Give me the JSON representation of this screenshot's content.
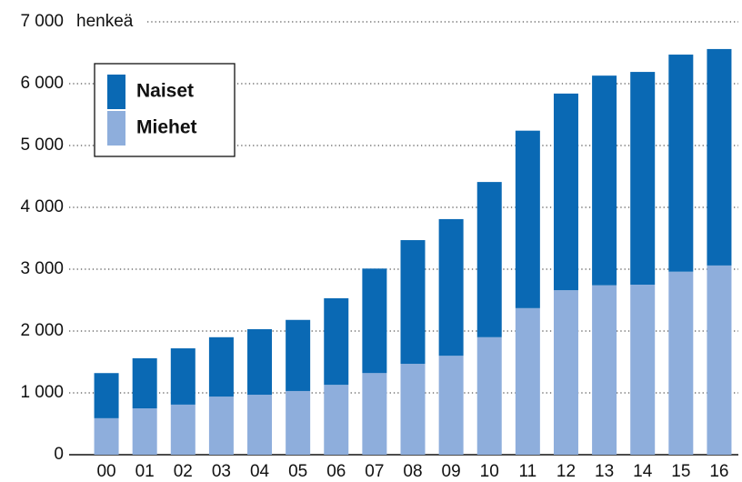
{
  "chart_data": {
    "type": "stacked_bar",
    "y_label": "henkeä",
    "categories": [
      "00",
      "01",
      "02",
      "03",
      "04",
      "05",
      "06",
      "07",
      "08",
      "09",
      "10",
      "11",
      "12",
      "13",
      "14",
      "15",
      "16"
    ],
    "series": [
      {
        "name": "Miehet",
        "color": "#8eaedc",
        "values": [
          590,
          750,
          810,
          940,
          970,
          1030,
          1130,
          1320,
          1470,
          1600,
          1900,
          2370,
          2660,
          2740,
          2750,
          2960,
          3060
        ]
      },
      {
        "name": "Naiset",
        "color": "#0a69b4",
        "values": [
          730,
          810,
          910,
          960,
          1060,
          1150,
          1400,
          1690,
          2000,
          2210,
          2510,
          2870,
          3180,
          3390,
          3440,
          3510,
          3500
        ]
      }
    ],
    "ylim": [
      0,
      7000
    ],
    "yticks": [
      0,
      {
        "value": 1000,
        "label": "1 000"
      },
      {
        "value": 2000,
        "label": "2 000"
      },
      {
        "value": 3000,
        "label": "3 000"
      },
      {
        "value": 4000,
        "label": "4 000"
      },
      {
        "value": 5000,
        "label": "5 000"
      },
      {
        "value": 6000,
        "label": "6 000"
      },
      {
        "value": 7000,
        "label": "7 000"
      }
    ],
    "grid": true,
    "legend": "upper left"
  }
}
